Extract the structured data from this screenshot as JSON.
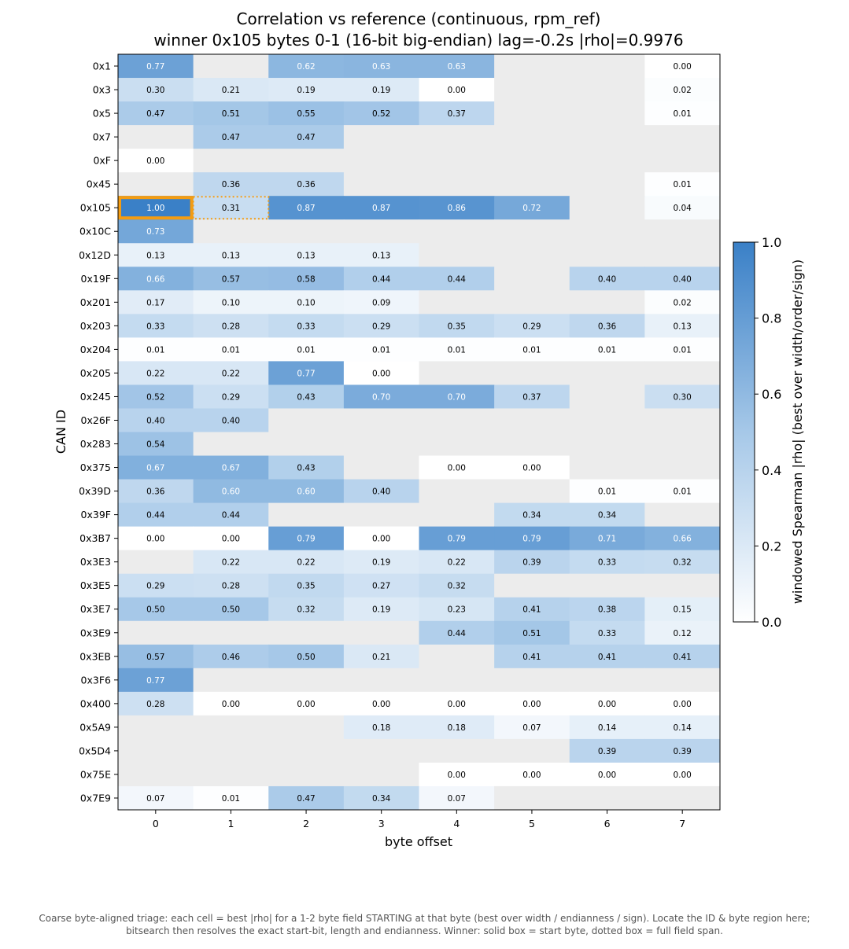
{
  "chart_data": {
    "type": "heatmap",
    "title": "Correlation vs reference (continuous, rpm_ref)",
    "subtitle": "winner 0x105  bytes 0-1 (16-bit big-endian)  lag=-0.2s  |rho|=0.9976",
    "xlabel": "byte offset",
    "ylabel": "CAN ID",
    "x": [
      "0",
      "1",
      "2",
      "3",
      "4",
      "5",
      "6",
      "7"
    ],
    "y": [
      "0x1",
      "0x3",
      "0x5",
      "0x7",
      "0xF",
      "0x45",
      "0x105",
      "0x10C",
      "0x12D",
      "0x19F",
      "0x201",
      "0x203",
      "0x204",
      "0x205",
      "0x245",
      "0x26F",
      "0x283",
      "0x375",
      "0x39D",
      "0x39F",
      "0x3B7",
      "0x3E3",
      "0x3E5",
      "0x3E7",
      "0x3E9",
      "0x3EB",
      "0x3F6",
      "0x400",
      "0x5A9",
      "0x5D4",
      "0x75E",
      "0x7E9"
    ],
    "values": [
      [
        0.77,
        null,
        0.62,
        0.63,
        0.63,
        null,
        null,
        0.0
      ],
      [
        0.3,
        0.21,
        0.19,
        0.19,
        0.0,
        null,
        null,
        0.02
      ],
      [
        0.47,
        0.51,
        0.55,
        0.52,
        0.37,
        null,
        null,
        0.01
      ],
      [
        null,
        0.47,
        0.47,
        null,
        null,
        null,
        null,
        null
      ],
      [
        0.0,
        null,
        null,
        null,
        null,
        null,
        null,
        null
      ],
      [
        null,
        0.36,
        0.36,
        null,
        null,
        null,
        null,
        0.01
      ],
      [
        1.0,
        0.31,
        0.87,
        0.87,
        0.86,
        0.72,
        null,
        0.04
      ],
      [
        0.73,
        null,
        null,
        null,
        null,
        null,
        null,
        null
      ],
      [
        0.13,
        0.13,
        0.13,
        0.13,
        null,
        null,
        null,
        null
      ],
      [
        0.66,
        0.57,
        0.58,
        0.44,
        0.44,
        null,
        0.4,
        0.4
      ],
      [
        0.17,
        0.1,
        0.1,
        0.09,
        null,
        null,
        null,
        0.02
      ],
      [
        0.33,
        0.28,
        0.33,
        0.29,
        0.35,
        0.29,
        0.36,
        0.13
      ],
      [
        0.01,
        0.01,
        0.01,
        0.01,
        0.01,
        0.01,
        0.01,
        0.01
      ],
      [
        0.22,
        0.22,
        0.77,
        0.0,
        null,
        null,
        null,
        null
      ],
      [
        0.52,
        0.29,
        0.43,
        0.7,
        0.7,
        0.37,
        null,
        0.3
      ],
      [
        0.4,
        0.4,
        null,
        null,
        null,
        null,
        null,
        null
      ],
      [
        0.54,
        null,
        null,
        null,
        null,
        null,
        null,
        null
      ],
      [
        0.67,
        0.67,
        0.43,
        null,
        0.0,
        0.0,
        null,
        null
      ],
      [
        0.36,
        0.6,
        0.6,
        0.4,
        null,
        null,
        0.01,
        0.01
      ],
      [
        0.44,
        0.44,
        null,
        null,
        null,
        0.34,
        0.34,
        null
      ],
      [
        0.0,
        0.0,
        0.79,
        0.0,
        0.79,
        0.79,
        0.71,
        0.66
      ],
      [
        null,
        0.22,
        0.22,
        0.19,
        0.22,
        0.39,
        0.33,
        0.32
      ],
      [
        0.29,
        0.28,
        0.35,
        0.27,
        0.32,
        null,
        null,
        null
      ],
      [
        0.5,
        0.5,
        0.32,
        0.19,
        0.23,
        0.41,
        0.38,
        0.15
      ],
      [
        null,
        null,
        null,
        null,
        0.44,
        0.51,
        0.33,
        0.12
      ],
      [
        0.57,
        0.46,
        0.5,
        0.21,
        null,
        0.41,
        0.41,
        0.41
      ],
      [
        0.77,
        null,
        null,
        null,
        null,
        null,
        null,
        null
      ],
      [
        0.28,
        0.0,
        0.0,
        0.0,
        0.0,
        0.0,
        0.0,
        0.0
      ],
      [
        null,
        null,
        null,
        0.18,
        0.18,
        0.07,
        0.14,
        0.14
      ],
      [
        null,
        null,
        null,
        null,
        null,
        null,
        0.39,
        0.39
      ],
      [
        null,
        null,
        null,
        null,
        0.0,
        0.0,
        0.0,
        0.0
      ],
      [
        0.07,
        0.01,
        0.47,
        0.34,
        0.07,
        null,
        null,
        null
      ]
    ],
    "colorbar": {
      "label": "windowed Spearman |rho| (best over width/order/sign)",
      "range": [
        0.0,
        1.0
      ],
      "ticks": [
        "0.0",
        "0.2",
        "0.4",
        "0.6",
        "0.8",
        "1.0"
      ],
      "color_low": "#ffffff",
      "color_high": "#3a80c7"
    },
    "missing_color": "#ececec",
    "highlight": {
      "row": "0x105",
      "start_byte": 0,
      "span_bytes": 2,
      "color": "#f39c12"
    },
    "grid": false
  },
  "caption": {
    "line1": "Coarse byte-aligned triage: each cell = best |rho| for a 1-2 byte field STARTING at that byte (best over width / endianness / sign). Locate the ID & byte region here;",
    "line2": "bitsearch then resolves the exact start-bit, length and endianness. Winner: solid box = start byte, dotted box = full field span."
  }
}
